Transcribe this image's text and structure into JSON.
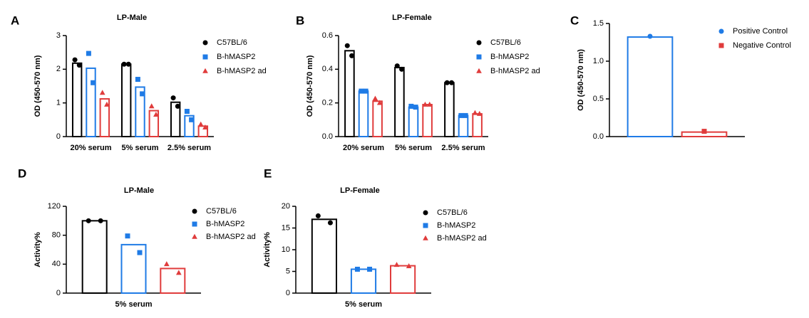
{
  "chart_data": [
    {
      "type": "bar",
      "panel": "A",
      "title": "LP-Male",
      "y_label": "OD (450-570 nm)",
      "categories": [
        "20% serum",
        "5% serum",
        "2.5% serum"
      ],
      "ylim": [
        0,
        3
      ],
      "yticks": [
        0,
        1,
        2,
        3
      ],
      "series": [
        {
          "name": "C57BL/6",
          "color": "#000000",
          "values": [
            2.18,
            2.15,
            1.02
          ],
          "points": [
            [
              2.28,
              2.12
            ],
            [
              2.15,
              2.15
            ],
            [
              1.15,
              0.9
            ]
          ]
        },
        {
          "name": "B-hMASP2",
          "color": "#1f7be6",
          "values": [
            2.03,
            1.47,
            0.62
          ],
          "points": [
            [
              2.47,
              1.6
            ],
            [
              1.7,
              1.27
            ],
            [
              0.75,
              0.5
            ]
          ]
        },
        {
          "name": "B-hMASP2 ad",
          "color": "#e03c3c",
          "values": [
            1.12,
            0.77,
            0.31
          ],
          "points": [
            [
              1.3,
              0.95
            ],
            [
              0.9,
              0.65
            ],
            [
              0.36,
              0.27
            ]
          ]
        }
      ]
    },
    {
      "type": "bar",
      "panel": "B",
      "title": "LP-Female",
      "y_label": "OD (450-570 nm)",
      "categories": [
        "20% serum",
        "5% serum",
        "2.5% serum"
      ],
      "ylim": [
        0,
        0.6
      ],
      "yticks": [
        {
          "value": 0,
          "label": "0.0"
        },
        0.2,
        0.4,
        0.6
      ],
      "series": [
        {
          "name": "C57BL/6",
          "color": "#000000",
          "values": [
            0.51,
            0.41,
            0.32
          ],
          "points": [
            [
              0.54,
              0.48
            ],
            [
              0.42,
              0.4
            ],
            [
              0.32,
              0.32
            ]
          ]
        },
        {
          "name": "B-hMASP2",
          "color": "#1f7be6",
          "values": [
            0.27,
            0.175,
            0.125
          ],
          "points": [
            [
              0.27,
              0.27
            ],
            [
              0.18,
              0.175
            ],
            [
              0.125,
              0.125
            ]
          ]
        },
        {
          "name": "B-hMASP2 ad",
          "color": "#e03c3c",
          "values": [
            0.21,
            0.19,
            0.135
          ],
          "points": [
            [
              0.225,
              0.2
            ],
            [
              0.19,
              0.19
            ],
            [
              0.14,
              0.135
            ]
          ]
        }
      ]
    },
    {
      "type": "bar",
      "panel": "C",
      "y_label": "OD (450-570 nm)",
      "categories": [
        null
      ],
      "ylim": [
        0,
        1.5
      ],
      "yticks": [
        {
          "value": 0,
          "label": "0.0"
        },
        0.5,
        {
          "value": 1,
          "label": "1.0"
        },
        1.5
      ],
      "series": [
        {
          "name": "Positive Control",
          "color": "#1f7be6",
          "values": [
            1.32
          ],
          "points": [
            [
              1.33
            ]
          ]
        },
        {
          "name": "Negative Control",
          "color": "#e03c3c",
          "values": [
            0.06
          ],
          "points": [
            [
              0.07
            ]
          ]
        }
      ]
    },
    {
      "type": "bar",
      "panel": "D",
      "title": "LP-Male",
      "y_label": "Activity%",
      "categories": [
        "5% serum"
      ],
      "ylim": [
        0,
        120
      ],
      "yticks": [
        0,
        40,
        80,
        120
      ],
      "series": [
        {
          "name": "C57BL/6",
          "color": "#000000",
          "values": [
            100
          ],
          "points": [
            [
              100,
              100
            ]
          ]
        },
        {
          "name": "B-hMASP2",
          "color": "#1f7be6",
          "values": [
            67
          ],
          "points": [
            [
              79,
              56
            ]
          ]
        },
        {
          "name": "B-hMASP2 ad",
          "color": "#e03c3c",
          "values": [
            34
          ],
          "points": [
            [
              40,
              28
            ]
          ]
        }
      ]
    },
    {
      "type": "bar",
      "panel": "E",
      "title": "LP-Female",
      "y_label": "Activity%",
      "categories": [
        "5% serum"
      ],
      "ylim": [
        0,
        20
      ],
      "yticks": [
        0,
        5,
        10,
        15,
        20
      ],
      "series": [
        {
          "name": "C57BL/6",
          "color": "#000000",
          "values": [
            17
          ],
          "points": [
            [
              17.8,
              16.2
            ]
          ]
        },
        {
          "name": "B-hMASP2",
          "color": "#1f7be6",
          "values": [
            5.5
          ],
          "points": [
            [
              5.5,
              5.5
            ]
          ]
        },
        {
          "name": "B-hMASP2 ad",
          "color": "#e03c3c",
          "values": [
            6.3
          ],
          "points": [
            [
              6.5,
              6.2
            ]
          ]
        }
      ]
    }
  ]
}
